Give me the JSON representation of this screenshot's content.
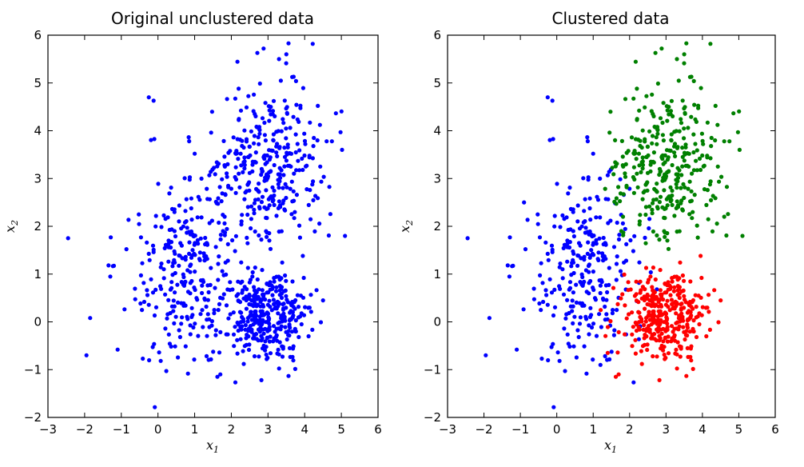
{
  "chart_data": [
    {
      "type": "scatter",
      "title": "Original unclustered data",
      "xlabel": "x",
      "xlabel_sub": "1",
      "ylabel": "x",
      "ylabel_sub": "2",
      "xlim": [
        -3,
        6
      ],
      "ylim": [
        -2,
        6
      ],
      "xticks": [
        -3,
        -2,
        -1,
        0,
        1,
        2,
        3,
        4,
        5,
        6
      ],
      "yticks": [
        -2,
        -1,
        0,
        1,
        2,
        3,
        4,
        5,
        6
      ],
      "grid": false,
      "series": [
        {
          "color": "#0000ff",
          "generator": "blue",
          "points": [
            [
              -2.45,
              1.75
            ],
            [
              -1.95,
              -0.7
            ],
            [
              -1.85,
              0.08
            ],
            [
              -1.1,
              -0.58
            ],
            [
              -0.25,
              4.7
            ],
            [
              -0.12,
              4.63
            ],
            [
              5.1,
              1.8
            ],
            [
              5.02,
              3.6
            ],
            [
              4.22,
              5.82
            ],
            [
              3.5,
              5.6
            ],
            [
              2.88,
              5.72
            ],
            [
              2.82,
              -1.22
            ],
            [
              1.7,
              -1.1
            ],
            [
              1.62,
              -1.15
            ],
            [
              1.0,
              3.52
            ],
            [
              0.85,
              3.78
            ],
            [
              4.5,
              0.45
            ],
            [
              3.95,
              1.38
            ],
            [
              2.2,
              4.88
            ],
            [
              3.3,
              5.5
            ]
          ]
        }
      ]
    },
    {
      "type": "scatter",
      "title": "Clustered data",
      "xlabel": "x",
      "xlabel_sub": "1",
      "ylabel": "x",
      "ylabel_sub": "2",
      "xlim": [
        -3,
        6
      ],
      "ylim": [
        -2,
        6
      ],
      "xticks": [
        -3,
        -2,
        -1,
        0,
        1,
        2,
        3,
        4,
        5,
        6
      ],
      "yticks": [
        -2,
        -1,
        0,
        1,
        2,
        3,
        4,
        5,
        6
      ],
      "grid": false,
      "series": [
        {
          "color": "#0000ff",
          "generator": "blue",
          "points": [
            [
              -2.45,
              1.75
            ],
            [
              -1.95,
              -0.7
            ],
            [
              -1.85,
              0.08
            ],
            [
              -1.1,
              -0.58
            ],
            [
              -0.25,
              4.7
            ],
            [
              -0.12,
              4.63
            ],
            [
              1.0,
              3.52
            ],
            [
              0.85,
              3.78
            ],
            [
              1.2,
              -0.9
            ],
            [
              -0.9,
              2.5
            ]
          ]
        },
        {
          "color": "#008000",
          "generator": "green",
          "points": [
            [
              5.1,
              1.8
            ],
            [
              5.02,
              3.6
            ],
            [
              4.22,
              5.82
            ],
            [
              3.5,
              5.6
            ],
            [
              2.88,
              5.72
            ],
            [
              2.2,
              4.88
            ],
            [
              3.3,
              5.5
            ],
            [
              4.6,
              2.2
            ],
            [
              1.6,
              3.8
            ]
          ]
        },
        {
          "color": "#ff0000",
          "generator": "red",
          "points": [
            [
              2.82,
              -1.22
            ],
            [
              1.7,
              -1.1
            ],
            [
              1.62,
              -1.15
            ],
            [
              4.5,
              0.45
            ],
            [
              3.95,
              1.38
            ],
            [
              1.4,
              -0.65
            ]
          ]
        }
      ]
    }
  ]
}
